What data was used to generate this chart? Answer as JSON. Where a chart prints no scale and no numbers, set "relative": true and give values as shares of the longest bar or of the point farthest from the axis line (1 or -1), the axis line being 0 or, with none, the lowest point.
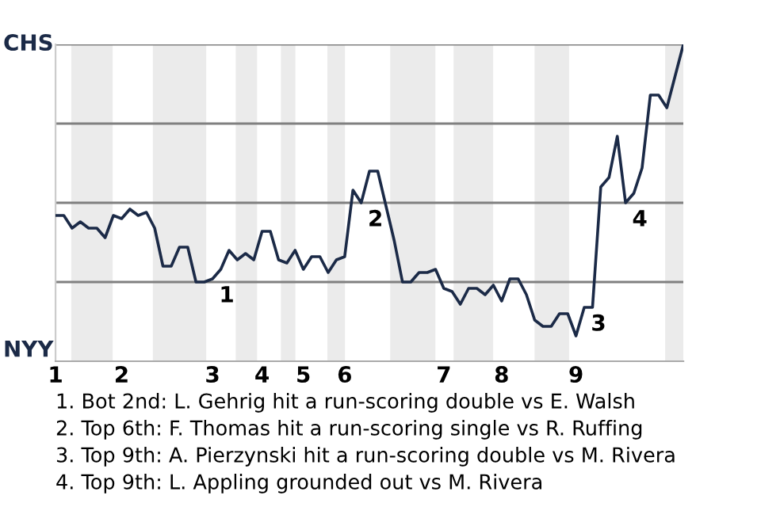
{
  "chart_data": {
    "type": "line",
    "relative": true,
    "categories": [
      "1",
      null,
      null,
      null,
      null,
      null,
      null,
      null,
      "2",
      null,
      null,
      null,
      null,
      null,
      null,
      null,
      null,
      null,
      null,
      "3",
      null,
      null,
      null,
      null,
      null,
      "4",
      null,
      null,
      null,
      null,
      "5",
      null,
      null,
      null,
      null,
      "6",
      null,
      null,
      null,
      null,
      null,
      null,
      null,
      null,
      null,
      null,
      null,
      "7",
      null,
      null,
      null,
      null,
      null,
      null,
      "8",
      null,
      null,
      null,
      null,
      null,
      null,
      null,
      null,
      "9",
      null,
      null,
      null,
      null,
      null,
      null,
      null,
      null,
      null,
      null,
      null,
      null,
      null
    ],
    "series": [
      {
        "color": "#1b2a47",
        "values": [
          0.46,
          0.46,
          0.42,
          0.44,
          0.42,
          0.42,
          0.39,
          0.46,
          0.45,
          0.48,
          0.46,
          0.47,
          0.42,
          0.3,
          0.3,
          0.36,
          0.36,
          0.25,
          0.25,
          0.26,
          0.29,
          0.35,
          0.32,
          0.34,
          0.32,
          0.41,
          0.41,
          0.32,
          0.31,
          0.35,
          0.29,
          0.33,
          0.33,
          0.28,
          0.32,
          0.33,
          0.54,
          0.5,
          0.6,
          0.6,
          0.49,
          0.38,
          0.25,
          0.25,
          0.28,
          0.28,
          0.29,
          0.23,
          0.22,
          0.18,
          0.23,
          0.23,
          0.21,
          0.24,
          0.19,
          0.26,
          0.26,
          0.21,
          0.13,
          0.11,
          0.11,
          0.15,
          0.15,
          0.08,
          0.17,
          0.17,
          0.55,
          0.58,
          0.71,
          0.5,
          0.53,
          0.61,
          0.84,
          0.84,
          0.8,
          0.9,
          1.0
        ],
        "line_style": "solid"
      }
    ],
    "ref_lines": [
      {
        "axis": "y",
        "value": 0.25,
        "color": "#808080"
      },
      {
        "axis": "y",
        "value": 0.5,
        "color": "#808080"
      },
      {
        "axis": "y",
        "value": 0.75,
        "color": "#808080"
      },
      {
        "axis": "y",
        "value": 1,
        "color": "#808080"
      }
    ],
    "annotations": [
      "CHS",
      "NYY",
      {
        "text": "1",
        "y": 0.26
      },
      {
        "text": "2",
        "y": 0.5
      },
      {
        "text": "3",
        "y": 0.17
      },
      {
        "text": "4",
        "y": 0.5
      },
      "1. Bot 2nd: L. Gehrig hit a run-scoring double vs E. Walsh",
      "2. Top 6th: F. Thomas hit a run-scoring single vs R. Ruffing",
      "3. Top 9th: A. Pierzynski hit a run-scoring double vs M. Rivera",
      "4. Top 9th: L. Appling grounded out vs M. Rivera"
    ]
  }
}
